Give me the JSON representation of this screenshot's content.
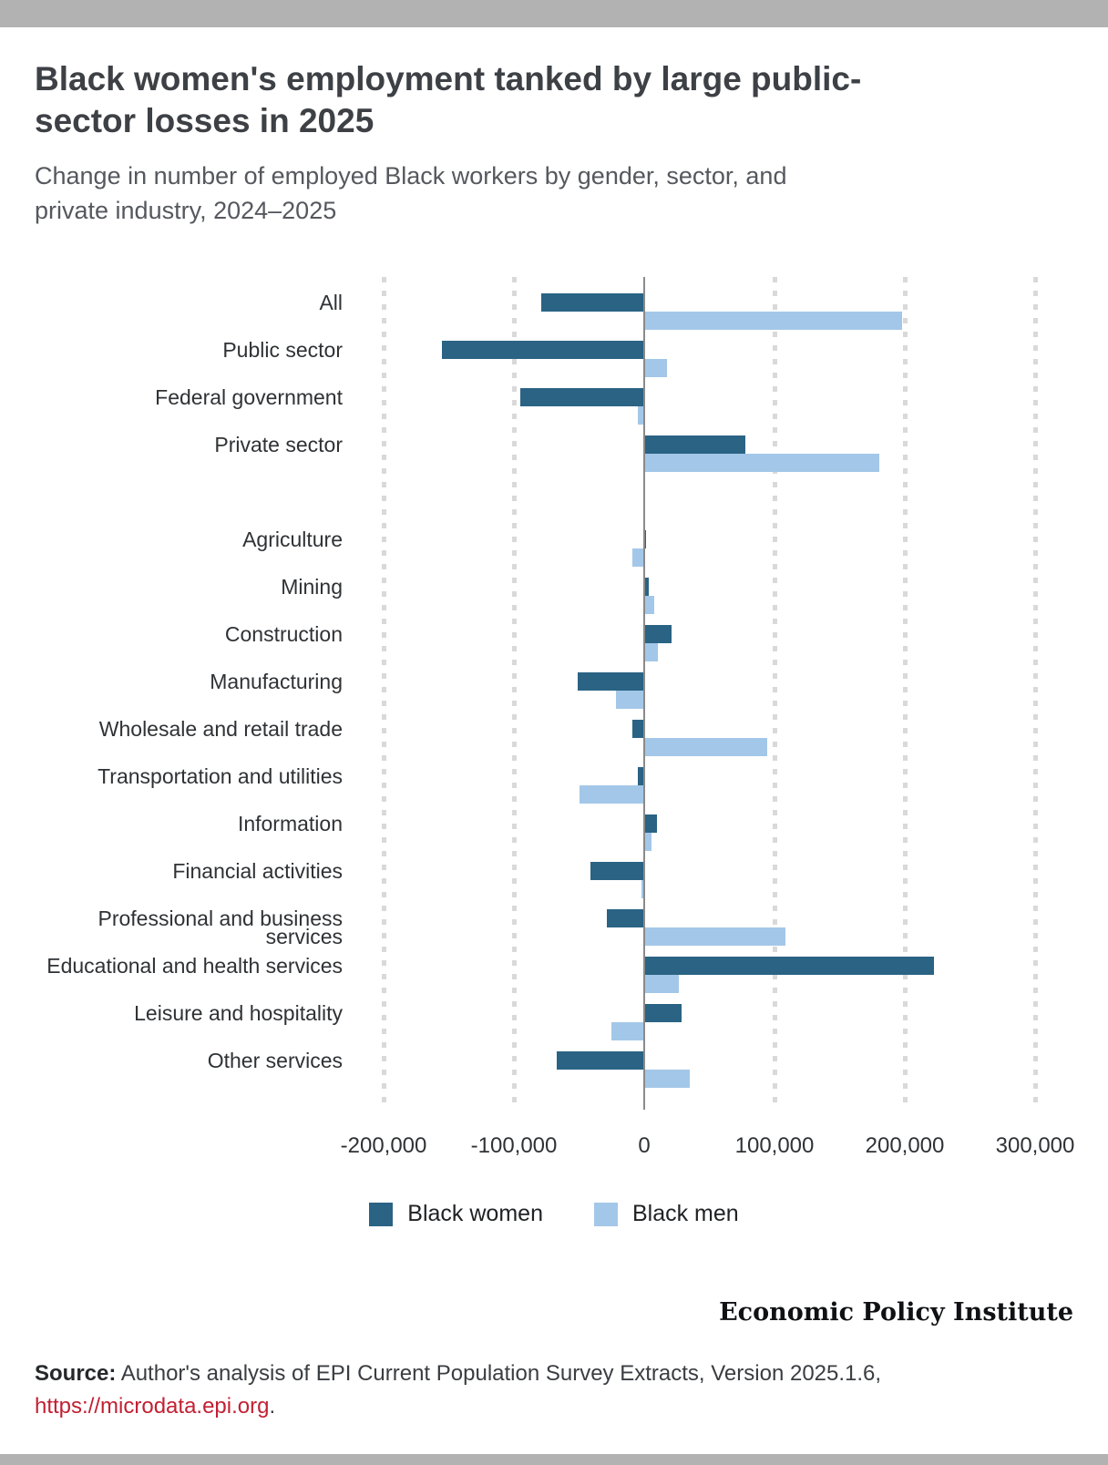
{
  "page": {
    "title_line1": "Black women's employment tanked by large public-",
    "title_line2": "sector losses in 2025",
    "subtitle_line1": "Change in number of employed Black workers by gender, sector, and",
    "subtitle_line2": "private industry, 2024–2025",
    "brand": "Economic Policy Institute",
    "source": {
      "label": "Source:",
      "text": " Author's analysis of EPI Current Population Survey Extracts, Version 2025.1.6,",
      "link": "https://microdata.epi.org",
      "suffix": "."
    },
    "colors": {
      "women_bar": "#2a6384",
      "men_bar": "#a3c7e8",
      "link_red": "#c22033",
      "border_bar_gray": "#b2b2b2",
      "zero_line": "#8a8a8a",
      "gridline": "#d9d9d9"
    }
  },
  "chart_data": {
    "type": "bar",
    "orientation": "horizontal",
    "title": "Black women's employment tanked by large public-sector losses in 2025",
    "subtitle": "Change in number of employed Black workers by gender, sector, and private industry, 2024–2025",
    "xlabel": "",
    "ylabel": "",
    "grid": "vertical-dotted",
    "legend_position": "bottom",
    "xlim": [
      -221000,
      356000
    ],
    "x_ticks": [
      -200000,
      -100000,
      0,
      100000,
      200000,
      300000
    ],
    "x_tick_labels": [
      "-200,000",
      "-100,000",
      "0",
      "100,000",
      "200,000",
      "300,000"
    ],
    "group_break_index": 4,
    "categories": [
      "All",
      "Public sector",
      "Federal government",
      "Private sector",
      "Agriculture",
      "Mining",
      "Construction",
      "Manufacturing",
      "Wholesale and retail trade",
      "Transportation and utilities",
      "Information",
      "Financial activities",
      "Professional and business services",
      "Educational and health services",
      "Leisure and hospitality",
      "Other services"
    ],
    "category_display": {
      "Professional and business services": "Professional and business\nservices"
    },
    "series": [
      {
        "name": "Black women",
        "color": "#2a6384",
        "values": [
          -79000,
          -155000,
          -95000,
          77000,
          1000,
          3000,
          20000,
          -51000,
          -9000,
          -5000,
          9000,
          -41000,
          -29000,
          222000,
          28000,
          -67000
        ]
      },
      {
        "name": "Black men",
        "color": "#a3c7e8",
        "values": [
          197000,
          17000,
          -5000,
          180000,
          -9000,
          7000,
          10000,
          -22000,
          94000,
          -50000,
          5000,
          -2000,
          108000,
          26000,
          -25000,
          34000
        ]
      }
    ]
  }
}
